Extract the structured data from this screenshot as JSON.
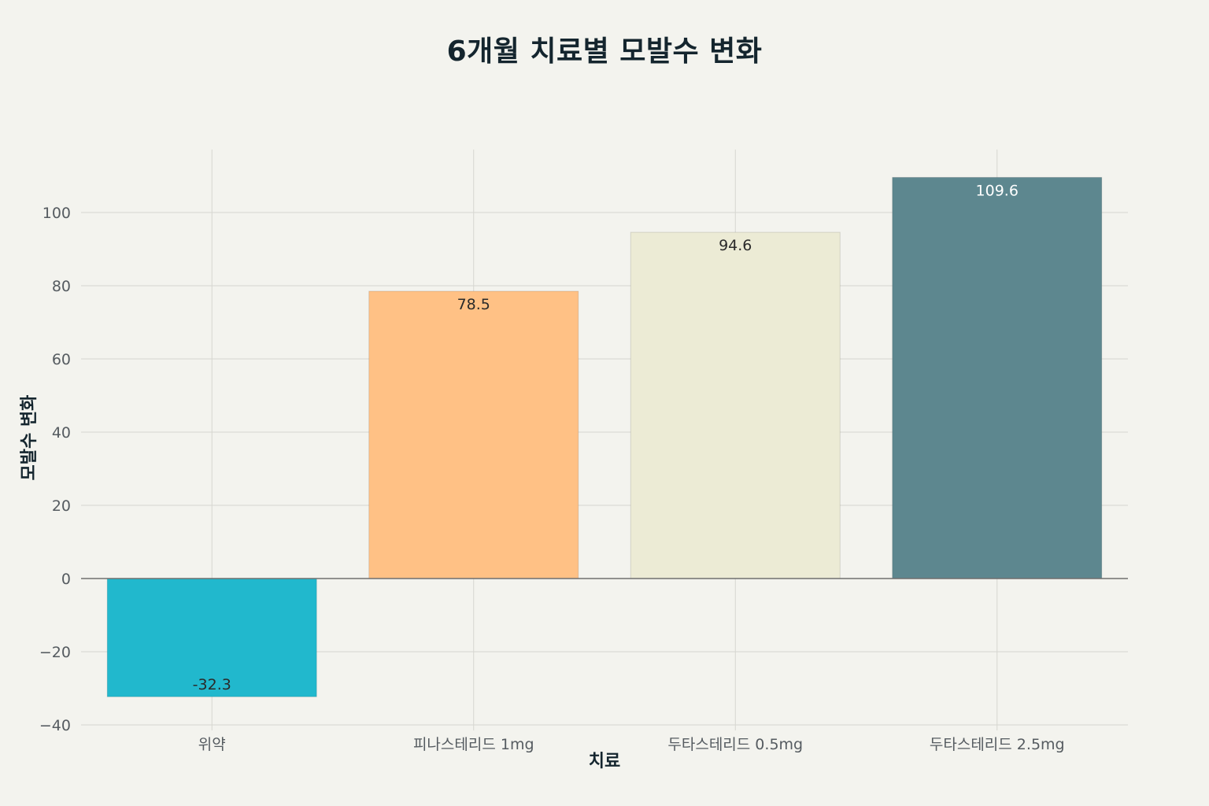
{
  "chart_data": {
    "type": "bar",
    "title": "6개월 치료별 모발수 변화",
    "xlabel": "치료",
    "ylabel": "모발수 변화",
    "categories": [
      "위약",
      "피나스테리드 1mg",
      "두타스테리드 0.5mg",
      "두타스테리드 2.5mg"
    ],
    "values": [
      -32.3,
      78.5,
      94.6,
      109.6
    ],
    "value_labels": [
      "-32.3",
      "78.5",
      "94.6",
      "109.6"
    ],
    "ylim": [
      -40,
      117
    ],
    "yticks": [
      -40,
      -20,
      0,
      20,
      40,
      60,
      80,
      100
    ],
    "ytick_labels": [
      "−40",
      "−20",
      "0",
      "20",
      "40",
      "60",
      "80",
      "100"
    ],
    "grid": true,
    "legend": false,
    "colors": [
      "#21b8cd",
      "#ffc185",
      "#ecebd5",
      "#5d878f"
    ],
    "label_colors": [
      "#2a2a2a",
      "#2a2a2a",
      "#2a2a2a",
      "#ffffff"
    ]
  }
}
